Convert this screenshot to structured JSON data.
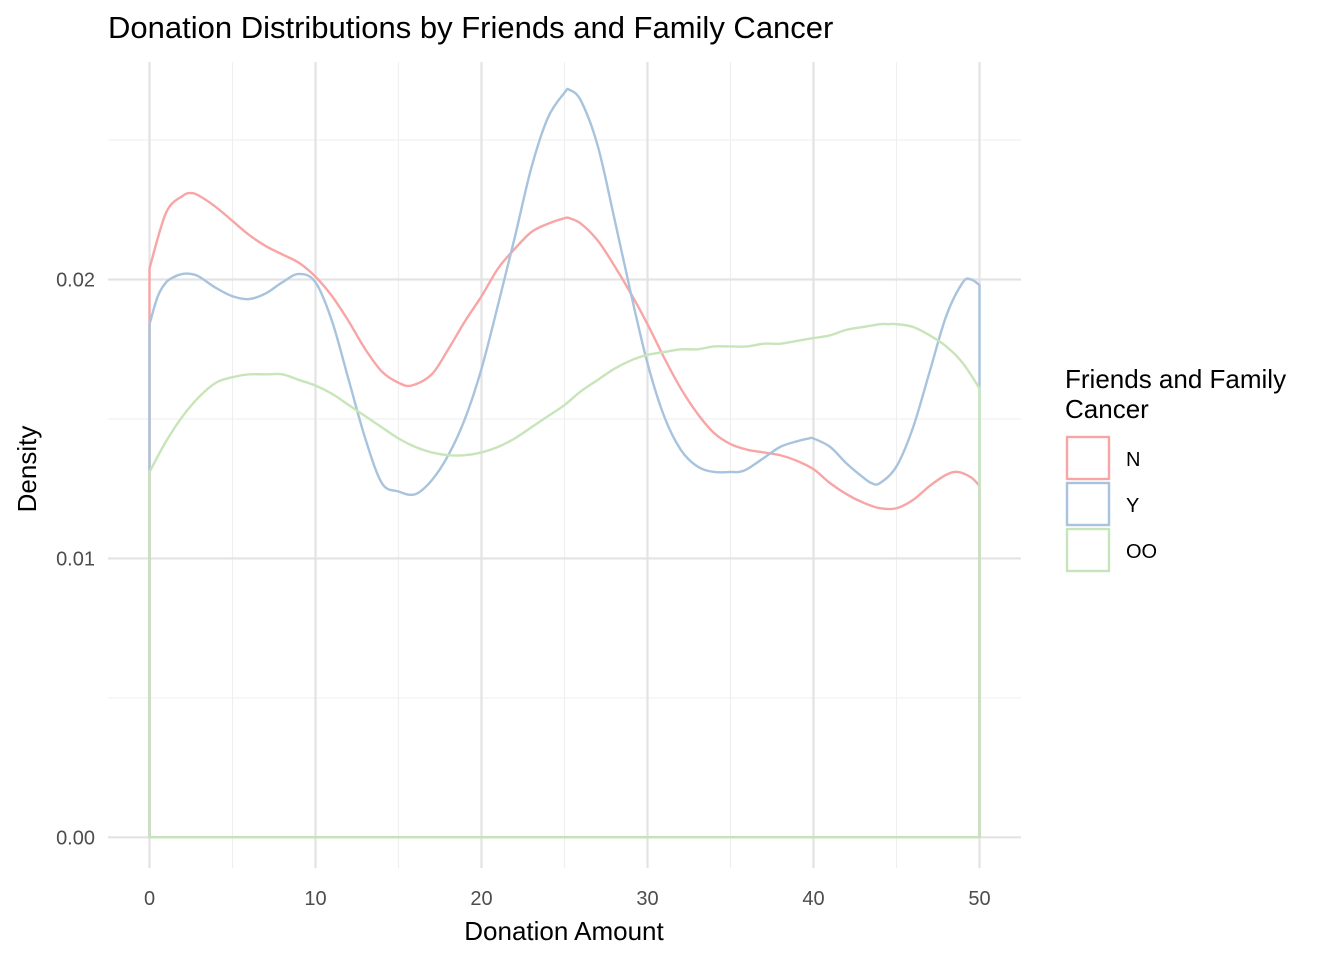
{
  "chart_data": {
    "type": "line",
    "title": "Donation Distributions by Friends and Family Cancer",
    "xlabel": "Donation Amount",
    "ylabel": "Density",
    "xlim": [
      -2.5,
      52.5
    ],
    "ylim": [
      -0.0011,
      0.0278
    ],
    "x_ticks": [
      0,
      10,
      20,
      30,
      40,
      50
    ],
    "x_tick_labels": [
      "0",
      "10",
      "20",
      "30",
      "40",
      "50"
    ],
    "x_minor_ticks": [
      5,
      15,
      25,
      35,
      45
    ],
    "y_ticks": [
      0.0,
      0.01,
      0.02
    ],
    "y_tick_labels": [
      "0.00",
      "0.01",
      "0.02"
    ],
    "y_minor_ticks": [
      0.005,
      0.015,
      0.025
    ],
    "grid": true,
    "legend": {
      "title_lines": [
        "Friends and Family",
        "Cancer"
      ],
      "placement": "right"
    },
    "series": [
      {
        "name": "N",
        "color": "#F8A5A5",
        "x": [
          0,
          1,
          2,
          2.5,
          3,
          4,
          5,
          6,
          7,
          8,
          9,
          10,
          11,
          12,
          13,
          14,
          15,
          15.8,
          17,
          18,
          19,
          20,
          21,
          22,
          23,
          24,
          25,
          25.3,
          26,
          27,
          28,
          29,
          30,
          31,
          32,
          33,
          34,
          35,
          36,
          37,
          38,
          39,
          40,
          41,
          42,
          43,
          44,
          45,
          46,
          47,
          48,
          48.7,
          49.5,
          50
        ],
        "values": [
          0.0204,
          0.0224,
          0.023,
          0.0231,
          0.023,
          0.0226,
          0.0221,
          0.0216,
          0.0212,
          0.0209,
          0.0206,
          0.0201,
          0.0194,
          0.0185,
          0.0175,
          0.0167,
          0.0163,
          0.0162,
          0.0166,
          0.0175,
          0.0185,
          0.0194,
          0.0204,
          0.0211,
          0.0217,
          0.022,
          0.0222,
          0.0222,
          0.022,
          0.0214,
          0.0205,
          0.0195,
          0.0184,
          0.0172,
          0.0161,
          0.0152,
          0.0145,
          0.0141,
          0.0139,
          0.0138,
          0.0137,
          0.0135,
          0.0132,
          0.0127,
          0.0123,
          0.012,
          0.0118,
          0.0118,
          0.0121,
          0.0126,
          0.013,
          0.0131,
          0.0129,
          0.0126
        ]
      },
      {
        "name": "Y",
        "color": "#A7C3DD",
        "x": [
          0,
          0.5,
          1,
          1.5,
          2,
          2.5,
          3,
          4,
          5,
          6,
          7,
          8,
          9,
          10,
          11,
          12,
          13,
          14,
          15,
          16,
          17,
          18,
          19,
          20,
          21,
          22,
          23,
          24,
          25,
          25.3,
          26,
          27,
          28,
          29,
          30,
          31,
          32,
          33,
          34,
          35,
          35.5,
          36,
          37,
          38,
          39,
          39.7,
          40,
          41,
          42,
          43,
          43.5,
          44,
          45,
          46,
          47,
          48,
          49,
          49.5,
          50
        ],
        "values": [
          0.0184,
          0.0194,
          0.0199,
          0.0201,
          0.0202,
          0.0202,
          0.0201,
          0.0197,
          0.0194,
          0.0193,
          0.0195,
          0.0199,
          0.0202,
          0.0199,
          0.0185,
          0.0164,
          0.0143,
          0.0127,
          0.0124,
          0.0123,
          0.0128,
          0.0137,
          0.015,
          0.0168,
          0.0191,
          0.0215,
          0.024,
          0.0258,
          0.0267,
          0.0268,
          0.0264,
          0.0248,
          0.0222,
          0.0195,
          0.017,
          0.0151,
          0.0139,
          0.0133,
          0.0131,
          0.0131,
          0.0131,
          0.0132,
          0.0136,
          0.014,
          0.0142,
          0.0143,
          0.0143,
          0.014,
          0.0134,
          0.0129,
          0.0127,
          0.0127,
          0.0133,
          0.0147,
          0.0167,
          0.0187,
          0.0199,
          0.02,
          0.0198
        ]
      },
      {
        "name": "OO",
        "color": "#C8E5BA",
        "x": [
          0,
          1,
          2,
          3,
          4,
          5,
          6,
          7,
          8,
          9,
          10,
          11,
          12,
          13,
          14,
          15,
          16,
          17,
          18,
          19,
          20,
          21,
          22,
          23,
          24,
          25,
          26,
          27,
          28,
          29,
          30,
          31,
          32,
          33,
          34,
          35,
          36,
          37,
          38,
          39,
          40,
          41,
          42,
          43,
          44,
          44.5,
          45,
          46,
          47,
          48,
          49,
          50
        ],
        "values": [
          0.0131,
          0.0142,
          0.0151,
          0.0158,
          0.0163,
          0.0165,
          0.0166,
          0.0166,
          0.0166,
          0.0164,
          0.0162,
          0.0159,
          0.0155,
          0.0151,
          0.0147,
          0.0143,
          0.014,
          0.0138,
          0.0137,
          0.0137,
          0.0138,
          0.014,
          0.0143,
          0.0147,
          0.0151,
          0.0155,
          0.016,
          0.0164,
          0.0168,
          0.0171,
          0.0173,
          0.0174,
          0.0175,
          0.0175,
          0.0176,
          0.0176,
          0.0176,
          0.0177,
          0.0177,
          0.0178,
          0.0179,
          0.018,
          0.0182,
          0.0183,
          0.0184,
          0.0184,
          0.0184,
          0.0183,
          0.018,
          0.0176,
          0.017,
          0.0161
        ]
      }
    ]
  }
}
